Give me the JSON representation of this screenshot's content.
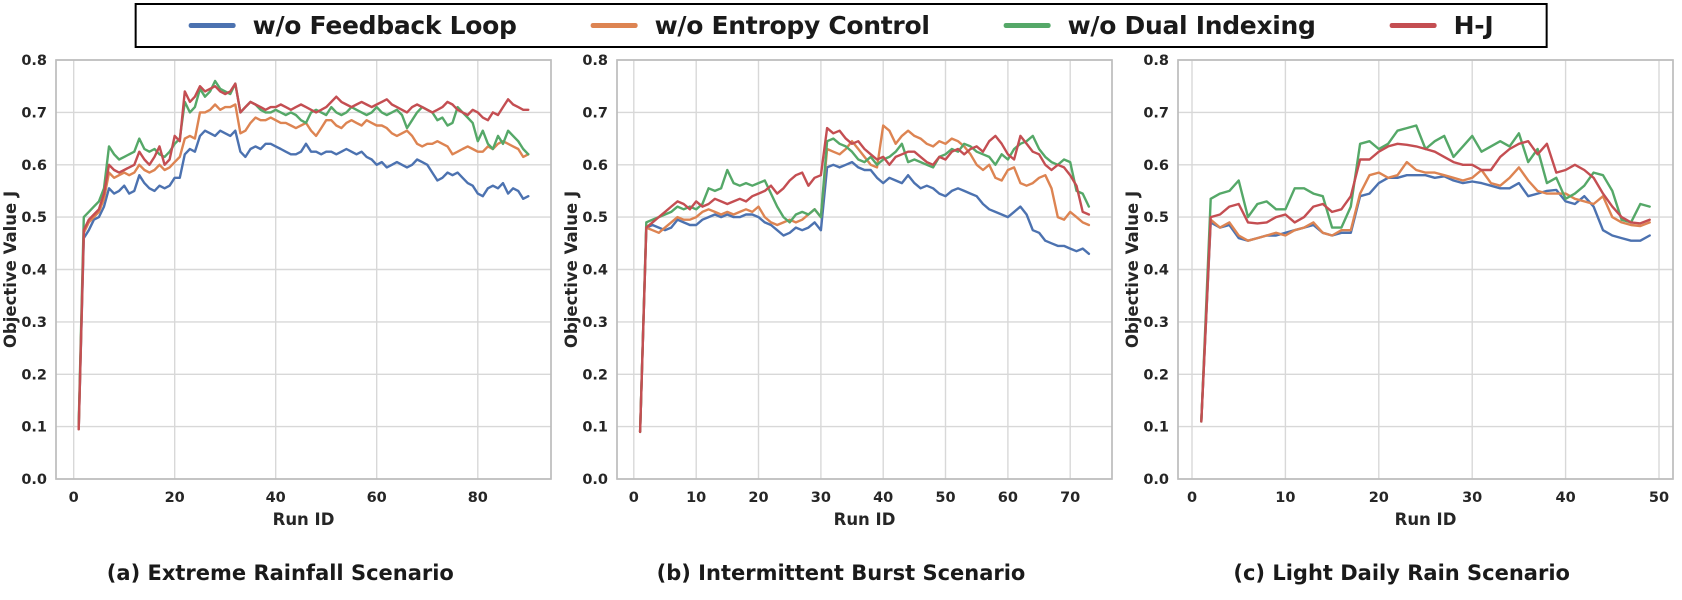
{
  "colors": {
    "blue": "#4C72B0",
    "orange": "#DD8452",
    "green": "#55A868",
    "red": "#C44E52"
  },
  "style": {
    "grid_color": "#d8d8d8",
    "frame_color": "#bdbdbd",
    "text_color": "#262626",
    "background": "#ffffff"
  },
  "legend": {
    "items": [
      {
        "label": "w/o Feedback Loop",
        "color": "blue"
      },
      {
        "label": "w/o Entropy Control",
        "color": "orange"
      },
      {
        "label": "w/o Dual Indexing",
        "color": "green"
      },
      {
        "label": "H-J",
        "color": "red"
      }
    ]
  },
  "chart_data": [
    {
      "type": "line",
      "caption": "(a) Extreme Rainfall Scenario",
      "xlabel": "Run ID",
      "ylabel": "Objective Value J",
      "xlim": [
        -3.5,
        94.5
      ],
      "ylim": [
        0,
        0.8
      ],
      "xticks": [
        0,
        20,
        40,
        60,
        80
      ],
      "yticks": [
        "0.0",
        "0.1",
        "0.2",
        "0.3",
        "0.4",
        "0.5",
        "0.6",
        "0.7",
        "0.8"
      ],
      "x_start": 1,
      "grid": true,
      "legend_position": "top-outside",
      "series": [
        {
          "name": "w/o Feedback Loop",
          "color": "blue",
          "values": [
            0.095,
            0.46,
            0.475,
            0.495,
            0.5,
            0.52,
            0.555,
            0.545,
            0.55,
            0.56,
            0.545,
            0.55,
            0.58,
            0.565,
            0.555,
            0.55,
            0.56,
            0.555,
            0.56,
            0.575,
            0.575,
            0.62,
            0.63,
            0.625,
            0.655,
            0.665,
            0.66,
            0.655,
            0.665,
            0.66,
            0.655,
            0.665,
            0.625,
            0.615,
            0.63,
            0.635,
            0.63,
            0.64,
            0.64,
            0.635,
            0.63,
            0.625,
            0.62,
            0.62,
            0.625,
            0.64,
            0.625,
            0.625,
            0.62,
            0.625,
            0.625,
            0.62,
            0.625,
            0.63,
            0.625,
            0.62,
            0.625,
            0.615,
            0.61,
            0.6,
            0.605,
            0.595,
            0.6,
            0.605,
            0.6,
            0.595,
            0.6,
            0.61,
            0.605,
            0.6,
            0.585,
            0.57,
            0.575,
            0.585,
            0.58,
            0.585,
            0.575,
            0.565,
            0.56,
            0.545,
            0.54,
            0.555,
            0.56,
            0.555,
            0.565,
            0.545,
            0.555,
            0.55,
            0.535,
            0.54
          ]
        },
        {
          "name": "w/o Entropy Control",
          "color": "orange",
          "values": [
            0.095,
            0.47,
            0.49,
            0.5,
            0.51,
            0.535,
            0.585,
            0.575,
            0.58,
            0.585,
            0.58,
            0.585,
            0.6,
            0.59,
            0.585,
            0.59,
            0.6,
            0.59,
            0.595,
            0.605,
            0.615,
            0.65,
            0.655,
            0.65,
            0.7,
            0.7,
            0.705,
            0.715,
            0.705,
            0.71,
            0.71,
            0.715,
            0.66,
            0.665,
            0.68,
            0.69,
            0.685,
            0.685,
            0.69,
            0.685,
            0.68,
            0.68,
            0.675,
            0.67,
            0.675,
            0.68,
            0.665,
            0.655,
            0.67,
            0.685,
            0.685,
            0.675,
            0.67,
            0.68,
            0.685,
            0.68,
            0.675,
            0.685,
            0.68,
            0.675,
            0.675,
            0.67,
            0.66,
            0.655,
            0.66,
            0.665,
            0.655,
            0.64,
            0.635,
            0.64,
            0.64,
            0.645,
            0.64,
            0.635,
            0.62,
            0.625,
            0.63,
            0.635,
            0.63,
            0.625,
            0.625,
            0.635,
            0.63,
            0.64,
            0.645,
            0.64,
            0.635,
            0.63,
            0.615,
            0.62
          ]
        },
        {
          "name": "w/o Dual Indexing",
          "color": "green",
          "values": [
            0.105,
            0.5,
            0.51,
            0.52,
            0.53,
            0.555,
            0.635,
            0.62,
            0.61,
            0.615,
            0.62,
            0.625,
            0.65,
            0.63,
            0.625,
            0.63,
            0.62,
            0.615,
            0.625,
            0.64,
            0.65,
            0.72,
            0.7,
            0.71,
            0.745,
            0.73,
            0.74,
            0.76,
            0.745,
            0.74,
            0.735,
            0.755,
            0.7,
            0.71,
            0.72,
            0.715,
            0.705,
            0.7,
            0.7,
            0.705,
            0.7,
            0.695,
            0.7,
            0.695,
            0.685,
            0.68,
            0.7,
            0.705,
            0.7,
            0.695,
            0.71,
            0.7,
            0.695,
            0.7,
            0.71,
            0.705,
            0.7,
            0.695,
            0.7,
            0.71,
            0.7,
            0.695,
            0.7,
            0.705,
            0.695,
            0.67,
            0.685,
            0.7,
            0.71,
            0.705,
            0.7,
            0.685,
            0.69,
            0.675,
            0.68,
            0.71,
            0.7,
            0.69,
            0.68,
            0.645,
            0.665,
            0.64,
            0.63,
            0.655,
            0.64,
            0.665,
            0.655,
            0.645,
            0.63,
            0.62
          ]
        },
        {
          "name": "H-J",
          "color": "red",
          "values": [
            0.095,
            0.475,
            0.495,
            0.505,
            0.515,
            0.545,
            0.6,
            0.59,
            0.585,
            0.59,
            0.595,
            0.6,
            0.625,
            0.61,
            0.6,
            0.615,
            0.635,
            0.6,
            0.61,
            0.655,
            0.645,
            0.74,
            0.72,
            0.73,
            0.75,
            0.74,
            0.745,
            0.75,
            0.74,
            0.735,
            0.74,
            0.755,
            0.7,
            0.71,
            0.72,
            0.715,
            0.71,
            0.705,
            0.71,
            0.71,
            0.715,
            0.71,
            0.705,
            0.71,
            0.715,
            0.71,
            0.705,
            0.7,
            0.705,
            0.71,
            0.72,
            0.73,
            0.72,
            0.715,
            0.71,
            0.715,
            0.72,
            0.715,
            0.71,
            0.715,
            0.72,
            0.725,
            0.715,
            0.71,
            0.705,
            0.7,
            0.71,
            0.715,
            0.71,
            0.705,
            0.7,
            0.705,
            0.71,
            0.72,
            0.715,
            0.705,
            0.7,
            0.695,
            0.705,
            0.7,
            0.69,
            0.685,
            0.7,
            0.695,
            0.71,
            0.725,
            0.715,
            0.71,
            0.705,
            0.705
          ]
        }
      ]
    },
    {
      "type": "line",
      "caption": "(b) Intermittent Burst Scenario",
      "xlabel": "Run ID",
      "ylabel": "Objective Value J",
      "xlim": [
        -2.7,
        76.7
      ],
      "ylim": [
        0,
        0.8
      ],
      "xticks": [
        0,
        10,
        20,
        30,
        40,
        50,
        60,
        70
      ],
      "yticks": [
        "0.0",
        "0.1",
        "0.2",
        "0.3",
        "0.4",
        "0.5",
        "0.6",
        "0.7",
        "0.8"
      ],
      "x_start": 1,
      "grid": true,
      "legend_position": "top-outside",
      "series": [
        {
          "name": "w/o Feedback Loop",
          "color": "blue",
          "values": [
            0.09,
            0.48,
            0.485,
            0.48,
            0.475,
            0.48,
            0.495,
            0.49,
            0.485,
            0.485,
            0.495,
            0.5,
            0.505,
            0.5,
            0.505,
            0.5,
            0.5,
            0.505,
            0.505,
            0.5,
            0.49,
            0.485,
            0.475,
            0.465,
            0.47,
            0.48,
            0.475,
            0.48,
            0.49,
            0.475,
            0.595,
            0.6,
            0.595,
            0.6,
            0.605,
            0.595,
            0.59,
            0.59,
            0.575,
            0.565,
            0.575,
            0.57,
            0.565,
            0.58,
            0.565,
            0.555,
            0.56,
            0.555,
            0.545,
            0.54,
            0.55,
            0.555,
            0.55,
            0.545,
            0.54,
            0.525,
            0.515,
            0.51,
            0.505,
            0.5,
            0.51,
            0.52,
            0.505,
            0.475,
            0.47,
            0.455,
            0.45,
            0.445,
            0.445,
            0.44,
            0.435,
            0.44,
            0.43
          ]
        },
        {
          "name": "w/o Entropy Control",
          "color": "orange",
          "values": [
            0.09,
            0.48,
            0.475,
            0.47,
            0.48,
            0.49,
            0.5,
            0.495,
            0.495,
            0.5,
            0.51,
            0.515,
            0.51,
            0.505,
            0.51,
            0.505,
            0.51,
            0.515,
            0.51,
            0.52,
            0.5,
            0.49,
            0.485,
            0.49,
            0.495,
            0.49,
            0.495,
            0.505,
            0.515,
            0.5,
            0.63,
            0.625,
            0.62,
            0.63,
            0.645,
            0.63,
            0.615,
            0.6,
            0.595,
            0.675,
            0.665,
            0.64,
            0.655,
            0.665,
            0.655,
            0.65,
            0.64,
            0.635,
            0.645,
            0.64,
            0.65,
            0.645,
            0.635,
            0.62,
            0.6,
            0.59,
            0.6,
            0.575,
            0.57,
            0.59,
            0.595,
            0.565,
            0.56,
            0.565,
            0.575,
            0.58,
            0.555,
            0.5,
            0.495,
            0.51,
            0.5,
            0.49,
            0.485
          ]
        },
        {
          "name": "w/o Dual Indexing",
          "color": "green",
          "values": [
            0.09,
            0.49,
            0.495,
            0.5,
            0.505,
            0.51,
            0.52,
            0.515,
            0.52,
            0.515,
            0.525,
            0.555,
            0.55,
            0.555,
            0.59,
            0.565,
            0.56,
            0.565,
            0.56,
            0.565,
            0.57,
            0.545,
            0.52,
            0.5,
            0.49,
            0.505,
            0.51,
            0.505,
            0.515,
            0.5,
            0.645,
            0.65,
            0.64,
            0.635,
            0.625,
            0.61,
            0.605,
            0.615,
            0.6,
            0.61,
            0.615,
            0.625,
            0.64,
            0.605,
            0.61,
            0.605,
            0.6,
            0.595,
            0.615,
            0.62,
            0.63,
            0.625,
            0.64,
            0.635,
            0.625,
            0.62,
            0.615,
            0.6,
            0.62,
            0.61,
            0.63,
            0.64,
            0.645,
            0.655,
            0.63,
            0.615,
            0.605,
            0.6,
            0.61,
            0.605,
            0.55,
            0.545,
            0.52
          ]
        },
        {
          "name": "H-J",
          "color": "red",
          "values": [
            0.09,
            0.48,
            0.49,
            0.5,
            0.51,
            0.52,
            0.53,
            0.525,
            0.515,
            0.53,
            0.52,
            0.525,
            0.535,
            0.53,
            0.525,
            0.53,
            0.535,
            0.53,
            0.54,
            0.545,
            0.55,
            0.56,
            0.545,
            0.555,
            0.57,
            0.58,
            0.585,
            0.56,
            0.575,
            0.58,
            0.67,
            0.66,
            0.665,
            0.65,
            0.64,
            0.645,
            0.63,
            0.62,
            0.61,
            0.615,
            0.6,
            0.615,
            0.62,
            0.625,
            0.625,
            0.615,
            0.605,
            0.6,
            0.615,
            0.61,
            0.625,
            0.63,
            0.62,
            0.63,
            0.635,
            0.625,
            0.645,
            0.655,
            0.64,
            0.62,
            0.61,
            0.655,
            0.64,
            0.625,
            0.62,
            0.6,
            0.59,
            0.6,
            0.595,
            0.58,
            0.56,
            0.51,
            0.505
          ]
        }
      ]
    },
    {
      "type": "line",
      "caption": "(c) Light Daily Rain Scenario",
      "xlabel": "Run ID",
      "ylabel": "Objective Value J",
      "xlim": [
        -1.5,
        51.5
      ],
      "ylim": [
        0,
        0.8
      ],
      "xticks": [
        0,
        10,
        20,
        30,
        40,
        50
      ],
      "yticks": [
        "0.0",
        "0.1",
        "0.2",
        "0.3",
        "0.4",
        "0.5",
        "0.6",
        "0.7",
        "0.8"
      ],
      "x_start": 1,
      "grid": true,
      "legend_position": "top-outside",
      "series": [
        {
          "name": "w/o Feedback Loop",
          "color": "blue",
          "values": [
            0.11,
            0.49,
            0.48,
            0.485,
            0.46,
            0.455,
            0.46,
            0.465,
            0.465,
            0.47,
            0.475,
            0.48,
            0.485,
            0.47,
            0.465,
            0.47,
            0.47,
            0.54,
            0.545,
            0.565,
            0.575,
            0.575,
            0.58,
            0.58,
            0.58,
            0.575,
            0.578,
            0.57,
            0.565,
            0.568,
            0.565,
            0.56,
            0.555,
            0.555,
            0.565,
            0.54,
            0.545,
            0.55,
            0.552,
            0.53,
            0.525,
            0.54,
            0.52,
            0.475,
            0.465,
            0.46,
            0.455,
            0.455,
            0.465
          ]
        },
        {
          "name": "w/o Entropy Control",
          "color": "orange",
          "values": [
            0.11,
            0.495,
            0.48,
            0.49,
            0.465,
            0.455,
            0.46,
            0.465,
            0.47,
            0.465,
            0.475,
            0.48,
            0.49,
            0.47,
            0.465,
            0.475,
            0.475,
            0.545,
            0.58,
            0.585,
            0.575,
            0.58,
            0.605,
            0.59,
            0.585,
            0.585,
            0.58,
            0.575,
            0.57,
            0.575,
            0.59,
            0.565,
            0.56,
            0.575,
            0.595,
            0.57,
            0.55,
            0.545,
            0.545,
            0.545,
            0.535,
            0.53,
            0.525,
            0.54,
            0.5,
            0.49,
            0.485,
            0.483,
            0.49
          ]
        },
        {
          "name": "w/o Dual Indexing",
          "color": "green",
          "values": [
            0.11,
            0.535,
            0.545,
            0.55,
            0.57,
            0.5,
            0.525,
            0.53,
            0.515,
            0.515,
            0.555,
            0.555,
            0.545,
            0.54,
            0.48,
            0.48,
            0.52,
            0.64,
            0.645,
            0.63,
            0.64,
            0.665,
            0.67,
            0.675,
            0.63,
            0.645,
            0.655,
            0.615,
            0.635,
            0.655,
            0.625,
            0.635,
            0.645,
            0.635,
            0.66,
            0.605,
            0.63,
            0.565,
            0.575,
            0.535,
            0.545,
            0.56,
            0.585,
            0.58,
            0.55,
            0.495,
            0.49,
            0.525,
            0.52
          ]
        },
        {
          "name": "H-J",
          "color": "red",
          "values": [
            0.11,
            0.5,
            0.505,
            0.52,
            0.525,
            0.49,
            0.488,
            0.49,
            0.5,
            0.505,
            0.49,
            0.5,
            0.52,
            0.525,
            0.51,
            0.515,
            0.54,
            0.61,
            0.61,
            0.625,
            0.635,
            0.64,
            0.638,
            0.635,
            0.63,
            0.625,
            0.615,
            0.605,
            0.6,
            0.6,
            0.59,
            0.59,
            0.615,
            0.63,
            0.64,
            0.645,
            0.62,
            0.64,
            0.585,
            0.59,
            0.6,
            0.59,
            0.575,
            0.545,
            0.52,
            0.5,
            0.49,
            0.488,
            0.495
          ]
        }
      ]
    }
  ]
}
